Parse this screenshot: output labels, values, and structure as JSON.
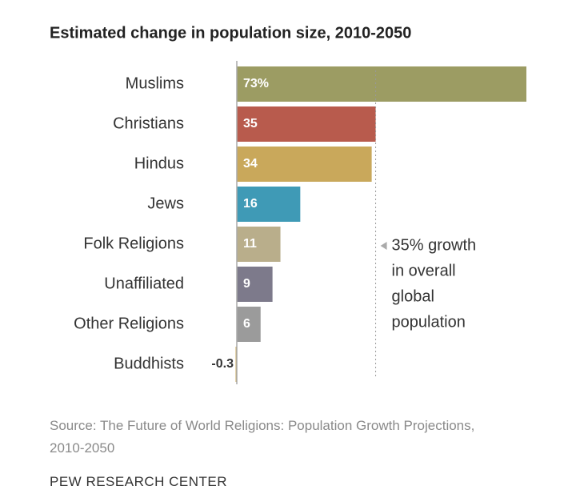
{
  "chart_data": {
    "type": "bar",
    "orientation": "horizontal",
    "title": "Estimated change in population size, 2010-2050",
    "categories": [
      "Muslims",
      "Christians",
      "Hindus",
      "Jews",
      "Folk Religions",
      "Unaffiliated",
      "Other Religions",
      "Buddhists"
    ],
    "values": [
      73,
      35,
      34,
      16,
      11,
      9,
      6,
      -0.3
    ],
    "value_labels": [
      "73%",
      "35",
      "34",
      "16",
      "11",
      "9",
      "6",
      "-0.3"
    ],
    "colors": [
      "#9c9c63",
      "#b85b4d",
      "#c9a85b",
      "#3f9ab6",
      "#b9ae8b",
      "#7d7a8b",
      "#9b9b9b",
      "#c9a85b"
    ],
    "reference_line": {
      "value": 35,
      "label_lines": [
        "35% growth",
        "in overall",
        "global",
        "population"
      ]
    },
    "source": "Source: The Future of World Religions: Population Growth Projections, 2010-2050",
    "footer": "PEW RESEARCH CENTER"
  }
}
